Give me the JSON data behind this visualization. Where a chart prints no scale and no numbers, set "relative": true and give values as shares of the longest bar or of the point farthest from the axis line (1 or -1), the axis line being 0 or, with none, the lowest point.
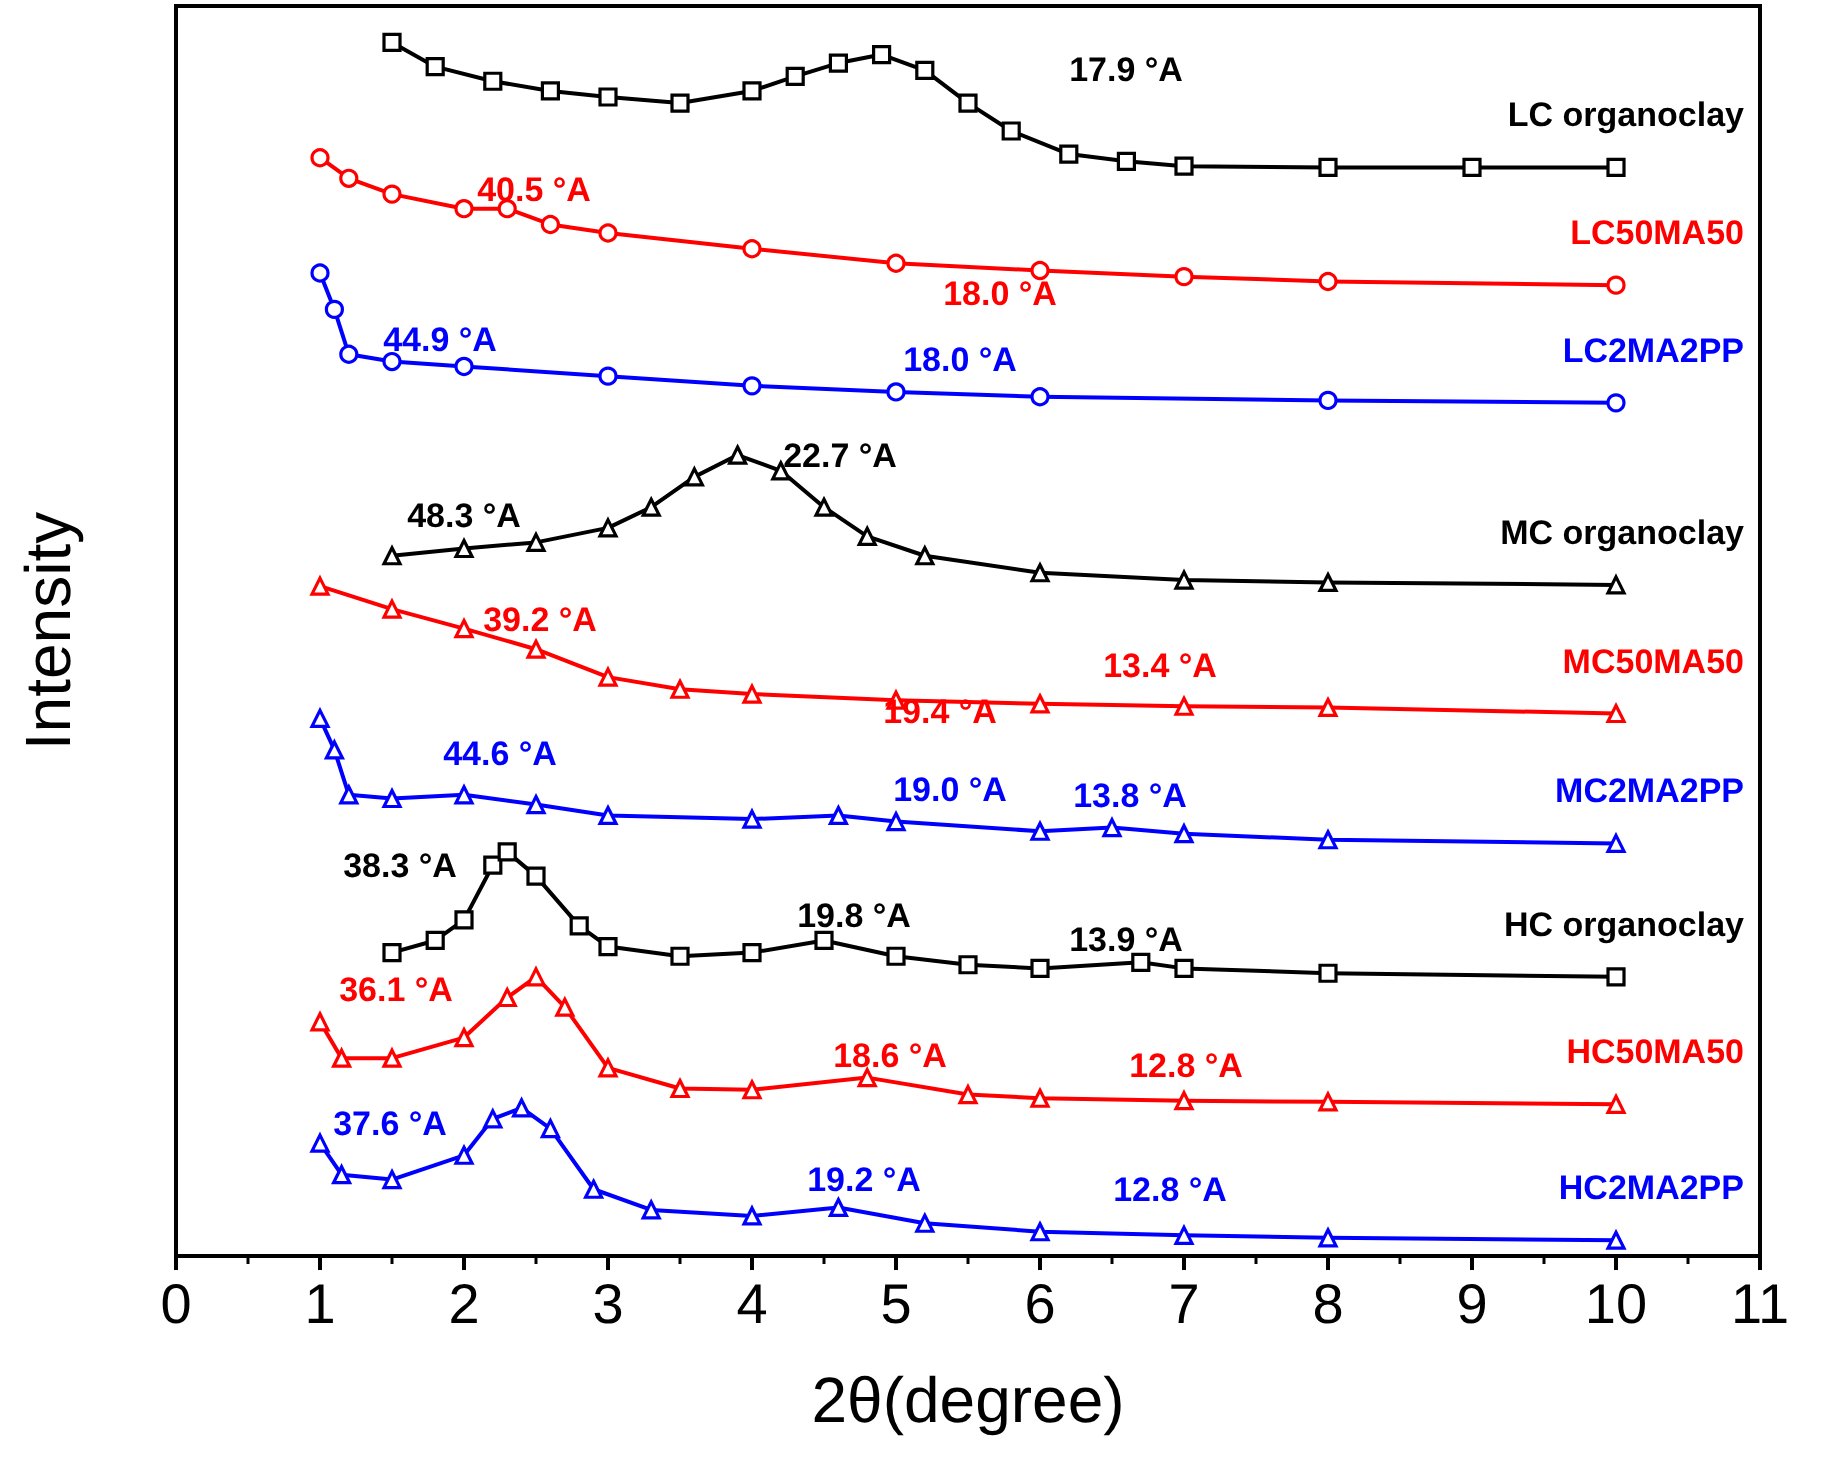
{
  "chart_data": {
    "type": "line",
    "relative": true,
    "xlabel": "2θ(degree)",
    "ylabel": "Intensity",
    "xlim": [
      0,
      11
    ],
    "xticks": [
      0,
      1,
      2,
      3,
      4,
      5,
      6,
      7,
      8,
      9,
      10,
      11
    ],
    "legend": false,
    "grid": false,
    "series": [
      {
        "name": "LC organoclay",
        "color": "#000000",
        "marker": "square",
        "x": [
          1.5,
          1.8,
          2.2,
          2.6,
          3,
          3.5,
          4,
          4.3,
          4.6,
          4.9,
          5.2,
          5.5,
          5.8,
          6.2,
          6.6,
          7,
          8,
          9,
          10
        ],
        "values": [
          1.0,
          0.98,
          0.968,
          0.96,
          0.955,
          0.95,
          0.96,
          0.972,
          0.983,
          0.99,
          0.977,
          0.95,
          0.927,
          0.908,
          0.902,
          0.898,
          0.897,
          0.897,
          0.897
        ]
      },
      {
        "name": "LC50MA50",
        "color": "#ff0000",
        "marker": "circle",
        "x": [
          1,
          1.2,
          1.5,
          2,
          2.3,
          2.6,
          3,
          4,
          5,
          6,
          7,
          8,
          10
        ],
        "values": [
          0.905,
          0.888,
          0.875,
          0.863,
          0.863,
          0.85,
          0.843,
          0.83,
          0.818,
          0.812,
          0.807,
          0.803,
          0.8
        ]
      },
      {
        "name": "LC2MA2PP",
        "color": "#0000ff",
        "marker": "circle",
        "x": [
          1,
          1.1,
          1.2,
          1.5,
          2,
          3,
          4,
          5,
          6,
          8,
          10
        ],
        "values": [
          0.81,
          0.78,
          0.743,
          0.737,
          0.733,
          0.725,
          0.717,
          0.712,
          0.708,
          0.705,
          0.703
        ]
      },
      {
        "name": "MC organoclay",
        "color": "#000000",
        "marker": "triangle",
        "x": [
          1.5,
          2,
          2.5,
          3,
          3.3,
          3.6,
          3.9,
          4.2,
          4.5,
          4.8,
          5.2,
          6,
          7,
          8,
          10
        ],
        "values": [
          0.577,
          0.583,
          0.588,
          0.6,
          0.617,
          0.642,
          0.66,
          0.647,
          0.617,
          0.593,
          0.577,
          0.563,
          0.557,
          0.555,
          0.553
        ]
      },
      {
        "name": "MC50MA50",
        "color": "#ff0000",
        "marker": "triangle",
        "x": [
          1,
          1.5,
          2,
          2.5,
          3,
          3.5,
          4,
          5,
          6,
          7,
          8,
          10
        ],
        "values": [
          0.552,
          0.533,
          0.517,
          0.5,
          0.477,
          0.467,
          0.463,
          0.458,
          0.455,
          0.453,
          0.452,
          0.447
        ]
      },
      {
        "name": "MC2MA2PP",
        "color": "#0000ff",
        "marker": "triangle",
        "x": [
          1,
          1.1,
          1.2,
          1.5,
          2,
          2.5,
          3,
          4,
          4.6,
          5,
          6,
          6.5,
          7,
          8,
          10
        ],
        "values": [
          0.443,
          0.417,
          0.38,
          0.377,
          0.38,
          0.372,
          0.363,
          0.36,
          0.363,
          0.358,
          0.35,
          0.353,
          0.348,
          0.343,
          0.34
        ]
      },
      {
        "name": "HC organoclay",
        "color": "#000000",
        "marker": "square",
        "x": [
          1.5,
          1.8,
          2,
          2.2,
          2.3,
          2.5,
          2.8,
          3,
          3.5,
          4,
          4.5,
          5,
          5.5,
          6,
          6.7,
          7,
          8,
          10
        ],
        "values": [
          0.25,
          0.26,
          0.277,
          0.322,
          0.333,
          0.313,
          0.272,
          0.255,
          0.247,
          0.25,
          0.26,
          0.247,
          0.24,
          0.237,
          0.242,
          0.237,
          0.233,
          0.23
        ]
      },
      {
        "name": "HC50MA50",
        "color": "#ff0000",
        "marker": "triangle",
        "x": [
          1,
          1.15,
          1.5,
          2,
          2.3,
          2.5,
          2.7,
          3,
          3.5,
          4,
          4.8,
          5.5,
          6,
          7,
          8,
          10
        ],
        "values": [
          0.193,
          0.163,
          0.163,
          0.18,
          0.213,
          0.23,
          0.205,
          0.155,
          0.138,
          0.137,
          0.147,
          0.133,
          0.13,
          0.128,
          0.127,
          0.125
        ]
      },
      {
        "name": "HC2MA2PP",
        "color": "#0000ff",
        "marker": "triangle",
        "x": [
          1,
          1.15,
          1.5,
          2,
          2.2,
          2.4,
          2.6,
          2.9,
          3.3,
          4,
          4.6,
          5.2,
          6,
          7,
          8,
          10
        ],
        "values": [
          0.093,
          0.067,
          0.063,
          0.083,
          0.113,
          0.122,
          0.105,
          0.055,
          0.038,
          0.033,
          0.04,
          0.027,
          0.02,
          0.017,
          0.015,
          0.013
        ]
      }
    ],
    "annotations": [
      "17.9 °A",
      "40.5 °A",
      "18.0 °A",
      "44.9 °A",
      "18.0 °A",
      "48.3 °A",
      "22.7 °A",
      "39.2 °A",
      "19.4 °A",
      "13.4 °A",
      "44.6 °A",
      "19.0 °A",
      "13.8 °A",
      "38.3 °A",
      "19.8 °A",
      "13.9 °A",
      "36.1 °A",
      "18.6 °A",
      "12.8 °A",
      "37.6 °A",
      "19.2 °A",
      "12.8 °A"
    ]
  }
}
